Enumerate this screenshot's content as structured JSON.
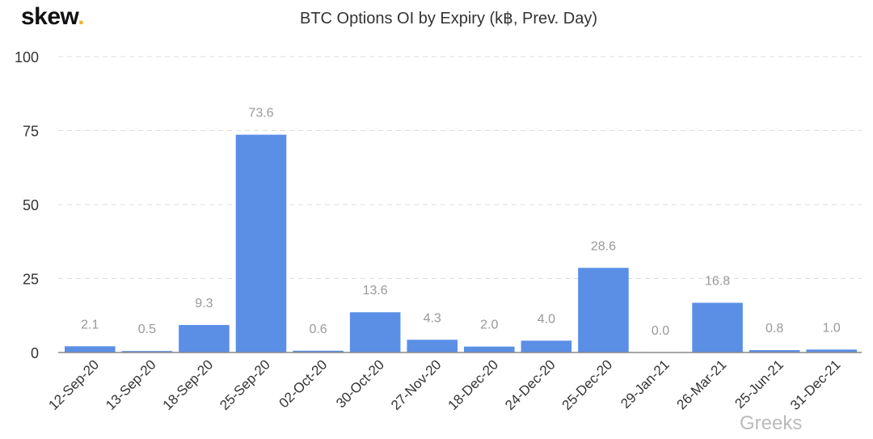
{
  "logo": {
    "text": "skew",
    "dot": "."
  },
  "watermark": "Greeks",
  "chart_data": {
    "type": "bar",
    "title": "BTC Options OI by Expiry (k฿, Prev. Day)",
    "xlabel": "",
    "ylabel": "",
    "ylim": [
      0,
      100
    ],
    "yticks": [
      0,
      25,
      50,
      75,
      100
    ],
    "grid": true,
    "categories": [
      "12-Sep-20",
      "13-Sep-20",
      "18-Sep-20",
      "25-Sep-20",
      "02-Oct-20",
      "30-Oct-20",
      "27-Nov-20",
      "18-Dec-20",
      "24-Dec-20",
      "25-Dec-20",
      "29-Jan-21",
      "26-Mar-21",
      "25-Jun-21",
      "31-Dec-21"
    ],
    "values": [
      2.1,
      0.5,
      9.3,
      73.6,
      0.6,
      13.6,
      4.3,
      2.0,
      4.0,
      28.6,
      0.0,
      16.8,
      0.8,
      1.0
    ],
    "color": "#5b8fe6"
  }
}
